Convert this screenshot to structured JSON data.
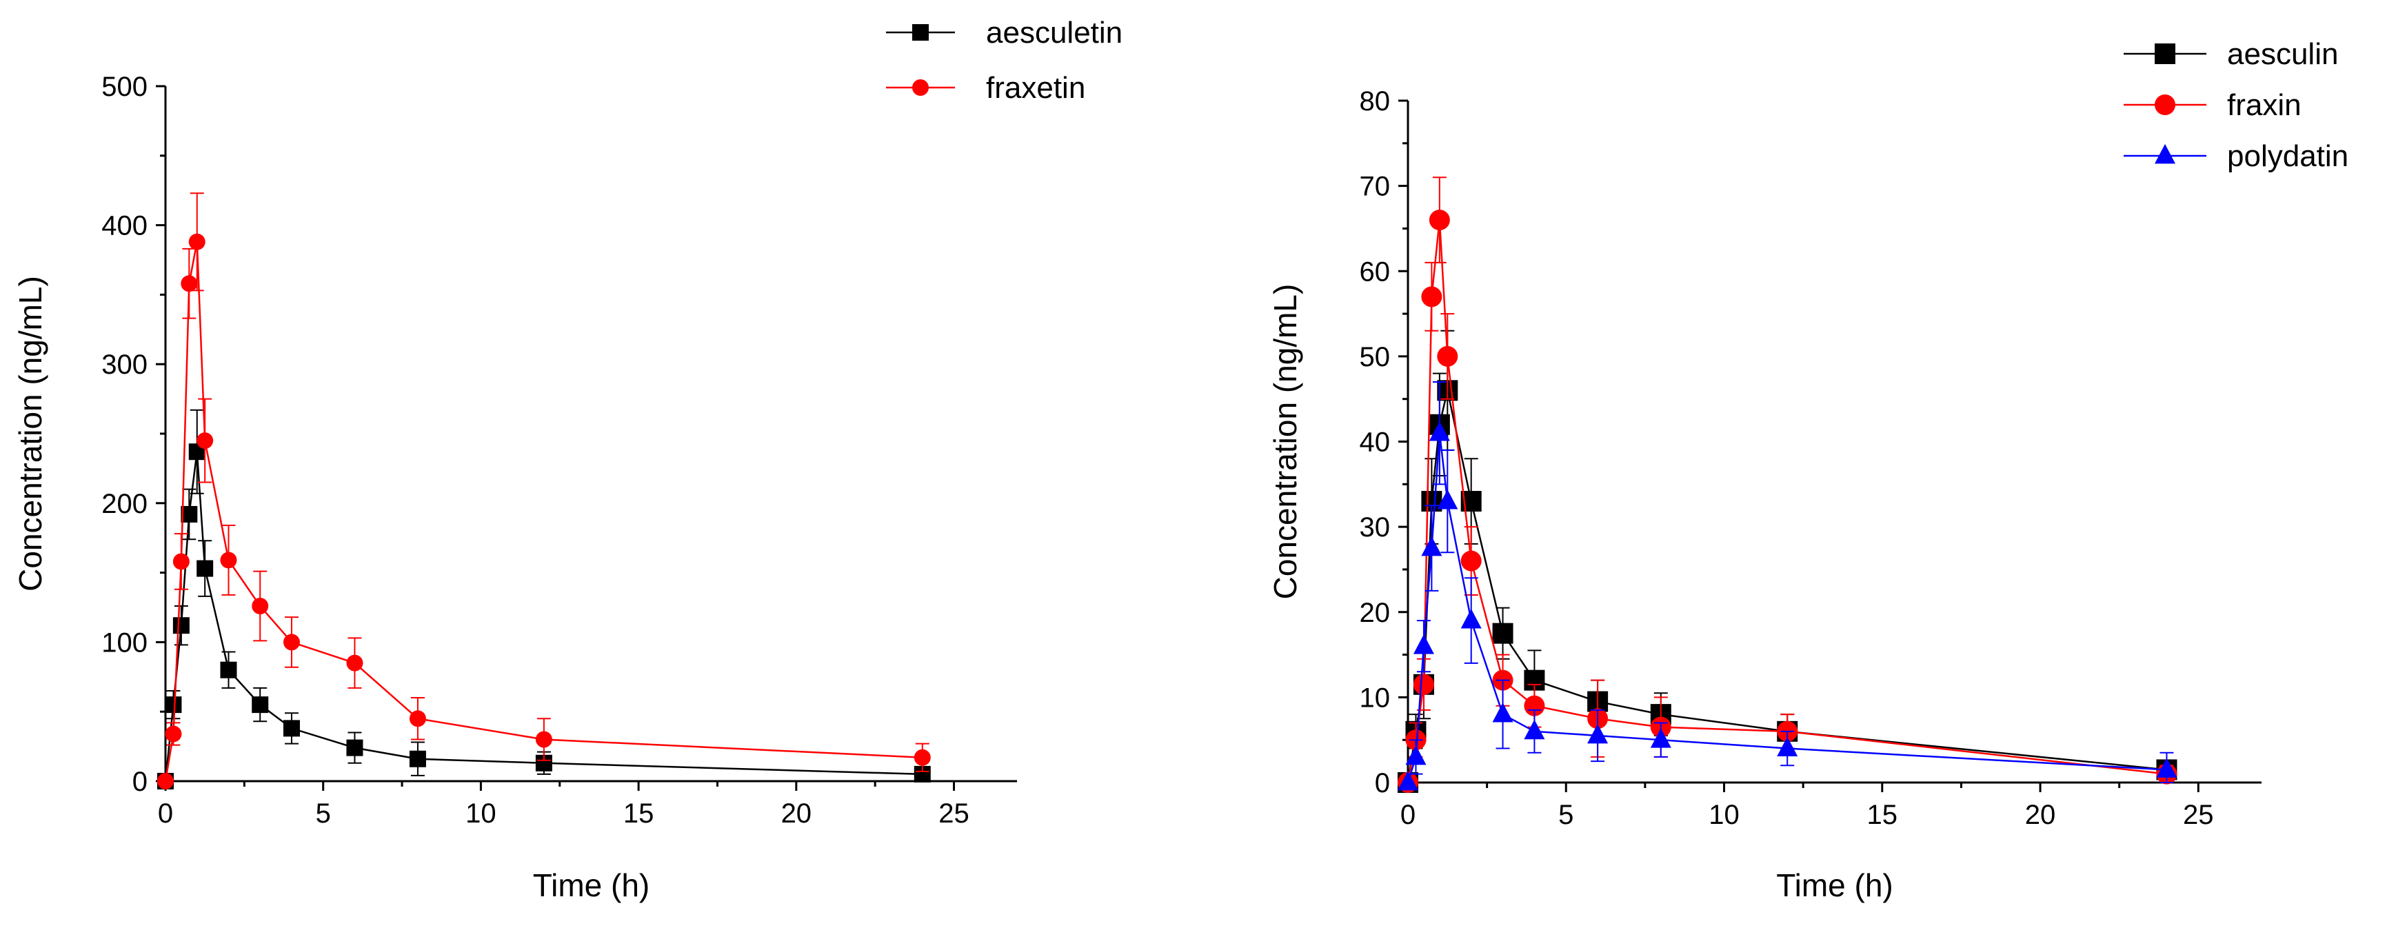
{
  "chart_data": [
    {
      "type": "line",
      "title": "",
      "xlabel": "Time (h)",
      "ylabel": "Concentration (ng/mL)",
      "xlim": [
        0,
        27
      ],
      "ylim": [
        0,
        500
      ],
      "xticks": [
        0,
        5,
        10,
        15,
        20,
        25
      ],
      "yticks": [
        0,
        100,
        200,
        300,
        400,
        500
      ],
      "legend_position": "top-right",
      "x": [
        0,
        0.25,
        0.5,
        0.75,
        1,
        1.25,
        2,
        3,
        4,
        6,
        8,
        12,
        24
      ],
      "series": [
        {
          "name": "aesculetin",
          "color": "#000000",
          "marker": "square",
          "values": [
            0,
            55,
            112,
            192,
            237,
            153,
            80,
            55,
            38,
            24,
            16,
            13,
            5
          ],
          "errors": [
            0,
            10,
            14,
            18,
            30,
            20,
            13,
            12,
            11,
            11,
            12,
            8,
            3
          ]
        },
        {
          "name": "fraxetin",
          "color": "#ff0000",
          "marker": "circle",
          "values": [
            0,
            34,
            158,
            358,
            388,
            245,
            159,
            126,
            100,
            85,
            45,
            30,
            17
          ],
          "errors": [
            0,
            8,
            20,
            25,
            35,
            30,
            25,
            25,
            18,
            18,
            15,
            15,
            10
          ]
        }
      ]
    },
    {
      "type": "line",
      "title": "",
      "xlabel": "Time (h)",
      "ylabel": "Concentration (ng/mL)",
      "xlim": [
        0,
        27
      ],
      "ylim": [
        0,
        80
      ],
      "xticks": [
        0,
        5,
        10,
        15,
        20,
        25
      ],
      "yticks": [
        0,
        10,
        20,
        30,
        40,
        50,
        60,
        70,
        80
      ],
      "legend_position": "top-right",
      "x": [
        0,
        0.25,
        0.5,
        0.75,
        1,
        1.25,
        2,
        3,
        4,
        6,
        8,
        12,
        24
      ],
      "series": [
        {
          "name": "aesculin",
          "color": "#000000",
          "marker": "square",
          "values": [
            0,
            6,
            11.5,
            33,
            42,
            46,
            33,
            17.5,
            12,
            9.5,
            8,
            6,
            1.5
          ],
          "errors": [
            0,
            2,
            4,
            5,
            6,
            7,
            5,
            3,
            3.5,
            2.5,
            2.5,
            2,
            1
          ]
        },
        {
          "name": "fraxin",
          "color": "#ff0000",
          "marker": "circle",
          "values": [
            0,
            5,
            11.5,
            57,
            66,
            50,
            26,
            12,
            9,
            7.5,
            6.5,
            6,
            1
          ],
          "errors": [
            0,
            2,
            3,
            4,
            5,
            5,
            4,
            3,
            2.5,
            4.5,
            3.5,
            2,
            1
          ]
        },
        {
          "name": "polydatin",
          "color": "#0000ff",
          "marker": "triangle",
          "values": [
            0,
            3,
            16,
            27.5,
            41,
            33,
            19,
            8,
            6,
            5.5,
            5,
            4,
            1.5
          ],
          "errors": [
            0,
            2,
            3,
            5,
            6,
            6,
            5,
            4,
            2.5,
            3,
            2,
            2,
            2
          ]
        }
      ]
    }
  ]
}
